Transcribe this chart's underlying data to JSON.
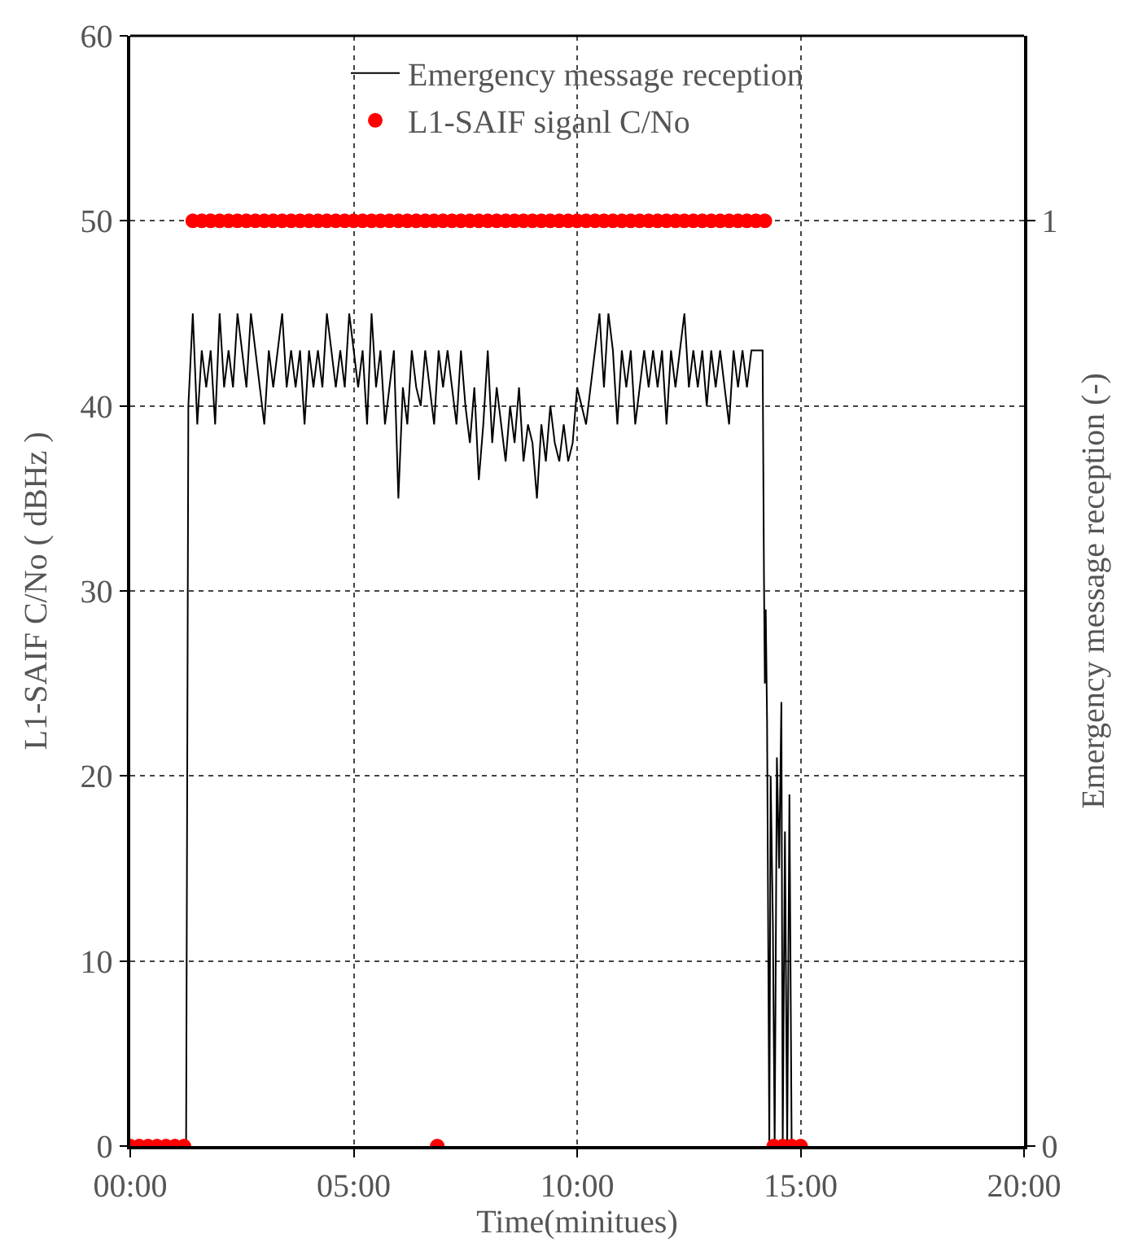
{
  "chart_data": {
    "type": "line",
    "xlabel": "Time(minitues)",
    "ylabel": "L1-SAIF C/No ( dBHz )",
    "y2label": "Emergency message reception (-)",
    "xlim": [
      0,
      20
    ],
    "xticks": [
      {
        "value": 0,
        "label": "00:00"
      },
      {
        "value": 5,
        "label": "05:00"
      },
      {
        "value": 10,
        "label": "10:00"
      },
      {
        "value": 15,
        "label": "15:00"
      },
      {
        "value": 20,
        "label": "20:00"
      }
    ],
    "ylim": [
      0,
      60
    ],
    "yticks": [
      0,
      10,
      20,
      30,
      40,
      50,
      60
    ],
    "y2lim": [
      0,
      1.2
    ],
    "y2ticks": [
      0,
      1
    ],
    "grid": true,
    "legend": "top",
    "series": [
      {
        "name": "Emergency message reception",
        "color": "#000000",
        "marker": "none",
        "line_style": "solid",
        "x": [
          0,
          1.25,
          1.3,
          1.4,
          1.5,
          1.6,
          1.7,
          1.8,
          1.9,
          2.0,
          2.1,
          2.2,
          2.3,
          2.4,
          2.5,
          2.6,
          2.7,
          2.8,
          2.9,
          3.0,
          3.1,
          3.2,
          3.3,
          3.4,
          3.5,
          3.6,
          3.7,
          3.8,
          3.9,
          4.0,
          4.1,
          4.2,
          4.3,
          4.4,
          4.5,
          4.6,
          4.7,
          4.8,
          4.9,
          5.0,
          5.1,
          5.2,
          5.3,
          5.4,
          5.5,
          5.6,
          5.7,
          5.8,
          5.9,
          6.0,
          6.1,
          6.2,
          6.3,
          6.4,
          6.5,
          6.6,
          6.7,
          6.8,
          6.9,
          7.0,
          7.1,
          7.2,
          7.3,
          7.4,
          7.5,
          7.6,
          7.7,
          7.8,
          7.9,
          8.0,
          8.1,
          8.2,
          8.3,
          8.4,
          8.5,
          8.6,
          8.7,
          8.8,
          8.9,
          9.0,
          9.1,
          9.2,
          9.3,
          9.4,
          9.5,
          9.6,
          9.7,
          9.8,
          9.9,
          10.0,
          10.1,
          10.2,
          10.3,
          10.4,
          10.5,
          10.6,
          10.7,
          10.8,
          10.9,
          11.0,
          11.1,
          11.2,
          11.3,
          11.4,
          11.5,
          11.6,
          11.7,
          11.8,
          11.9,
          12.0,
          12.1,
          12.2,
          12.3,
          12.4,
          12.5,
          12.6,
          12.7,
          12.8,
          12.9,
          13.0,
          13.1,
          13.2,
          13.3,
          13.4,
          13.5,
          13.6,
          13.7,
          13.8,
          13.9,
          14.0,
          14.1,
          14.15,
          14.18,
          14.2,
          14.22,
          14.25,
          14.3,
          14.33,
          14.38,
          14.42,
          14.47,
          14.52,
          14.57,
          14.6,
          14.65,
          14.7,
          14.75,
          14.8,
          15.0
        ],
        "values": [
          0,
          0,
          40,
          45,
          39,
          43,
          41,
          43,
          39,
          45,
          41,
          43,
          41,
          45,
          43,
          41,
          45,
          43,
          41,
          39,
          43,
          41,
          43,
          45,
          41,
          43,
          41,
          43,
          39,
          43,
          41,
          43,
          41,
          45,
          43,
          41,
          43,
          41,
          45,
          43,
          41,
          43,
          39,
          45,
          41,
          43,
          39,
          41,
          43,
          35,
          41,
          39,
          43,
          41,
          40,
          43,
          41,
          39,
          43,
          41,
          43,
          41,
          39,
          43,
          40,
          38,
          41,
          36,
          39,
          43,
          38,
          41,
          39,
          37,
          40,
          38,
          41,
          37,
          39,
          38,
          35,
          39,
          37,
          40,
          38,
          37,
          39,
          37,
          38,
          41,
          40,
          39,
          41,
          43,
          45,
          41,
          45,
          43,
          39,
          43,
          41,
          43,
          39,
          41,
          43,
          41,
          43,
          41,
          43,
          39,
          43,
          41,
          43,
          45,
          41,
          43,
          41,
          43,
          40,
          43,
          41,
          43,
          41,
          39,
          43,
          41,
          43,
          41,
          43,
          43,
          43,
          43,
          31,
          25,
          29,
          23,
          0,
          20,
          12,
          0,
          21,
          15,
          24,
          0,
          17,
          0,
          19,
          0,
          0
        ]
      },
      {
        "name": "L1-SAIF siganl C/No",
        "type": "scatter",
        "axis": "y2",
        "color": "#ff0000",
        "marker": "circle",
        "x": [
          0,
          0.2,
          0.4,
          0.6,
          0.8,
          1.0,
          1.2,
          1.4,
          1.6,
          1.8,
          2.0,
          2.2,
          2.4,
          2.6,
          2.8,
          3.0,
          3.2,
          3.4,
          3.6,
          3.8,
          4.0,
          4.2,
          4.4,
          4.6,
          4.8,
          5.0,
          5.2,
          5.4,
          5.6,
          5.8,
          6.0,
          6.2,
          6.4,
          6.6,
          6.8,
          6.87,
          7.0,
          7.2,
          7.4,
          7.6,
          7.8,
          8.0,
          8.2,
          8.4,
          8.6,
          8.8,
          9.0,
          9.2,
          9.4,
          9.6,
          9.8,
          10.0,
          10.2,
          10.4,
          10.6,
          10.8,
          11.0,
          11.2,
          11.4,
          11.6,
          11.8,
          12.0,
          12.2,
          12.4,
          12.6,
          12.8,
          13.0,
          13.2,
          13.4,
          13.6,
          13.8,
          14.0,
          14.2,
          14.4,
          14.6,
          14.8,
          15.0
        ],
        "values": [
          0,
          0,
          0,
          0,
          0,
          0,
          0,
          1,
          1,
          1,
          1,
          1,
          1,
          1,
          1,
          1,
          1,
          1,
          1,
          1,
          1,
          1,
          1,
          1,
          1,
          1,
          1,
          1,
          1,
          1,
          1,
          1,
          1,
          1,
          1,
          0,
          1,
          1,
          1,
          1,
          1,
          1,
          1,
          1,
          1,
          1,
          1,
          1,
          1,
          1,
          1,
          1,
          1,
          1,
          1,
          1,
          1,
          1,
          1,
          1,
          1,
          1,
          1,
          1,
          1,
          1,
          1,
          1,
          1,
          1,
          1,
          1,
          1,
          0,
          0,
          0,
          0
        ]
      }
    ]
  }
}
